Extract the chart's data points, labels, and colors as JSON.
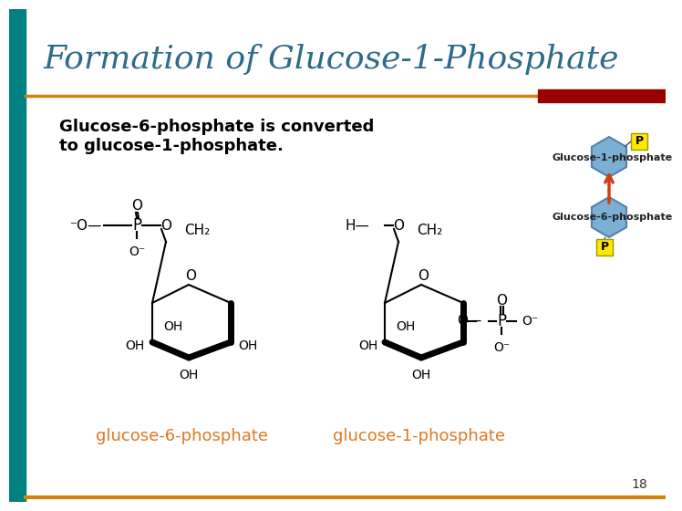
{
  "title": "Formation of Glucose-1-Phosphate",
  "title_color": "#2E6B8A",
  "title_fontsize": 26,
  "subtitle": "Glucose-6-phosphate is converted\nto glucose-1-phosphate.",
  "subtitle_fontsize": 13,
  "subtitle_color": "#000000",
  "left_bar_color": "#008080",
  "divider_color_orange": "#D4820A",
  "divider_color_red": "#990000",
  "label1": "glucose-6-phosphate",
  "label2": "glucose-1-phosphate",
  "label_color": "#E07820",
  "label_fontsize": 13,
  "diagram_label1": "Glucose-1-phosphate",
  "diagram_label2": "Glucose-6-phosphate",
  "diagram_label_fontsize": 8,
  "page_number": "18",
  "hex_color": "#7BAFD4",
  "p_box_color": "#FFE800",
  "arrow_color": "#D04010",
  "background_color": "#FFFFFF"
}
